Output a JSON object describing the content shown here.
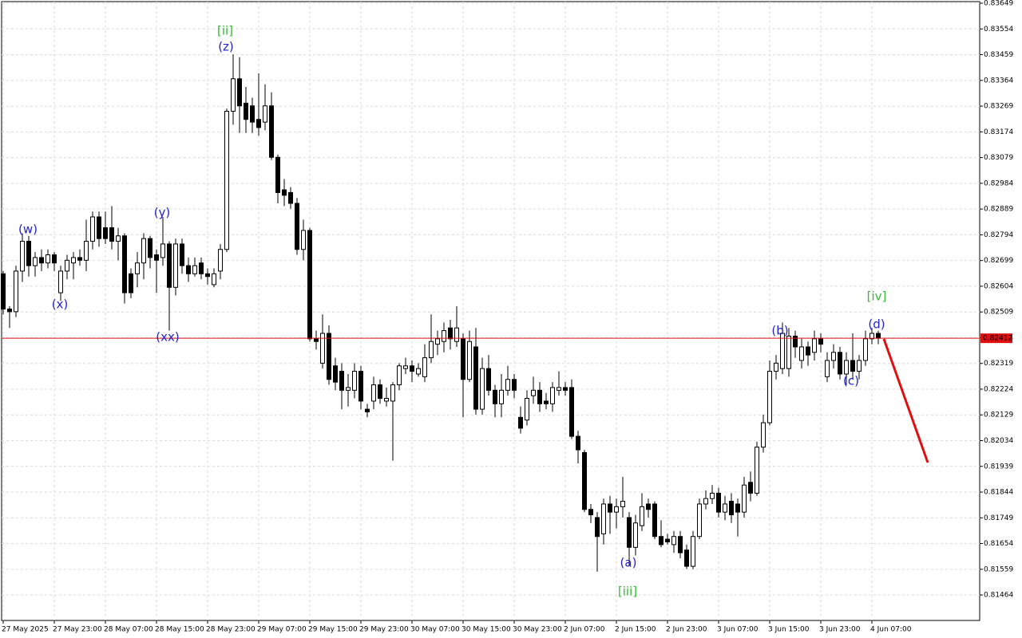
{
  "chart_data": {
    "type": "candlestick",
    "categories": [
      "27 May 2025",
      null,
      null,
      null,
      null,
      null,
      null,
      null,
      "27 May 23:00",
      null,
      null,
      null,
      null,
      null,
      null,
      null,
      "28 May 07:00",
      null,
      null,
      null,
      null,
      null,
      null,
      null,
      "28 May 15:00",
      null,
      null,
      null,
      null,
      null,
      null,
      null,
      "28 May 23:00",
      null,
      null,
      null,
      null,
      null,
      null,
      null,
      "29 May 07:00",
      null,
      null,
      null,
      null,
      null,
      null,
      null,
      "29 May 15:00",
      null,
      null,
      null,
      null,
      null,
      null,
      null,
      "29 May 23:00",
      null,
      null,
      null,
      null,
      null,
      null,
      null,
      "30 May 07:00",
      null,
      null,
      null,
      null,
      null,
      null,
      null,
      "30 May 15:00",
      null,
      null,
      null,
      null,
      null,
      null,
      null,
      "30 May 23:00",
      null,
      null,
      null,
      null,
      null,
      null,
      null,
      "2 Jun 07:00",
      null,
      null,
      null,
      null,
      null,
      null,
      null,
      "2 Jun 15:00",
      null,
      null,
      null,
      null,
      null,
      null,
      null,
      "2 Jun 23:00",
      null,
      null,
      null,
      null,
      null,
      null,
      null,
      "3 Jun 07:00",
      null,
      null,
      null,
      null,
      null,
      null,
      null,
      "3 Jun 15:00",
      null,
      null,
      null,
      null,
      null,
      null,
      null,
      "3 Jun 23:00",
      null,
      null,
      null,
      null,
      null,
      null,
      null,
      "4 Jun 07:00",
      null
    ],
    "open": [
      0.8265,
      0.8252,
      0.8251,
      0.8266,
      0.8277,
      0.8268,
      0.8271,
      0.8269,
      0.8272,
      0.8258,
      0.8266,
      0.8269,
      0.8271,
      0.827,
      0.8277,
      0.8286,
      0.8282,
      0.8282,
      0.8277,
      0.8279,
      0.8265,
      0.8265,
      0.8269,
      0.8278,
      0.8272,
      0.8271,
      0.8276,
      0.826,
      0.8276,
      0.8268,
      0.8265,
      0.8269,
      0.8265,
      0.8261,
      0.8266,
      0.8274,
      0.8325,
      0.8337,
      0.8328,
      0.8327,
      0.8322,
      0.8321,
      0.8327,
      0.8308,
      0.8296,
      0.8295,
      0.8291,
      0.8274,
      0.8281,
      0.8241,
      0.8232,
      0.8243,
      0.8231,
      0.8229,
      0.8222,
      0.8222,
      0.8229,
      0.8215,
      0.8218,
      0.8224,
      0.8218,
      0.8218,
      0.8224,
      0.823,
      0.8231,
      0.8228,
      0.8227,
      0.8234,
      0.8239,
      0.824,
      0.8245,
      0.824,
      0.8241,
      0.8226,
      0.8238,
      0.8215,
      0.823,
      0.8222,
      0.8217,
      0.8222,
      0.8226,
      0.8212,
      0.8211,
      0.822,
      0.8222,
      0.8218,
      0.8217,
      0.8222,
      0.8223,
      0.8223,
      0.8205,
      0.8199,
      0.8178,
      0.8175,
      0.8169,
      0.818,
      0.8177,
      0.8179,
      0.8175,
      0.8164,
      0.8172,
      0.818,
      0.818,
      0.8168,
      0.8167,
      0.8165,
      0.8168,
      0.8163,
      0.8157,
      0.8168,
      0.818,
      0.8182,
      0.8184,
      0.8177,
      0.8181,
      0.818,
      0.8177,
      0.8188,
      0.8184,
      0.8201,
      0.821,
      0.8229,
      0.823,
      0.823,
      0.8242,
      0.8233,
      0.8238,
      0.8236,
      0.8241,
      0.8227,
      0.8233,
      0.8236,
      0.8228,
      0.8233,
      0.8229,
      0.8233,
      0.8241,
      0.8243
    ],
    "high": [
      0.8266,
      0.8253,
      0.8268,
      0.828,
      0.8279,
      0.8273,
      0.8274,
      0.8274,
      0.8273,
      0.8268,
      0.8272,
      0.8273,
      0.8274,
      0.8285,
      0.8288,
      0.8288,
      0.8288,
      0.829,
      0.8282,
      0.828,
      0.8267,
      0.8273,
      0.828,
      0.8279,
      0.8274,
      0.8286,
      0.8277,
      0.8278,
      0.8278,
      0.8271,
      0.8271,
      0.8271,
      0.8267,
      0.8267,
      0.8276,
      0.8326,
      0.8346,
      0.8345,
      0.8334,
      0.833,
      0.8339,
      0.8335,
      0.8332,
      0.8309,
      0.83,
      0.8297,
      0.8293,
      0.8285,
      0.8282,
      0.8244,
      0.825,
      0.8246,
      0.8234,
      0.8232,
      0.8228,
      0.8232,
      0.8231,
      0.8217,
      0.8227,
      0.8226,
      0.8223,
      0.8225,
      0.8232,
      0.8234,
      0.8233,
      0.8232,
      0.8239,
      0.825,
      0.8244,
      0.8247,
      0.8248,
      0.8253,
      0.8243,
      0.8244,
      0.8245,
      0.8234,
      0.8235,
      0.8224,
      0.8228,
      0.8231,
      0.8228,
      0.8216,
      0.8222,
      0.8227,
      0.8225,
      0.8221,
      0.8225,
      0.8229,
      0.8225,
      0.8226,
      0.8207,
      0.82,
      0.818,
      0.8177,
      0.8182,
      0.8183,
      0.8182,
      0.819,
      0.8177,
      0.8176,
      0.8184,
      0.8182,
      0.8181,
      0.8174,
      0.8169,
      0.817,
      0.817,
      0.8165,
      0.817,
      0.8182,
      0.8185,
      0.8187,
      0.8186,
      0.8183,
      0.8184,
      0.8182,
      0.819,
      0.8192,
      0.8203,
      0.8213,
      0.8233,
      0.8235,
      0.8247,
      0.8245,
      0.8244,
      0.8241,
      0.824,
      0.8244,
      0.8243,
      0.8236,
      0.8239,
      0.8238,
      0.8236,
      0.8243,
      0.8235,
      0.8244,
      0.8245,
      0.8244
    ],
    "low": [
      0.825,
      0.8245,
      0.8249,
      0.8262,
      0.8264,
      0.8264,
      0.8266,
      0.8267,
      0.8266,
      0.8255,
      0.8263,
      0.8263,
      0.8268,
      0.8266,
      0.8274,
      0.8275,
      0.8276,
      0.8274,
      0.827,
      0.8254,
      0.8256,
      0.826,
      0.8263,
      0.8267,
      0.8258,
      0.8268,
      0.8244,
      0.8257,
      0.8265,
      0.8262,
      0.8264,
      0.8263,
      0.8261,
      0.826,
      0.8263,
      0.8273,
      0.832,
      0.8317,
      0.8317,
      0.8317,
      0.8316,
      0.8318,
      0.8307,
      0.8291,
      0.829,
      0.8289,
      0.8272,
      0.827,
      0.824,
      0.8237,
      0.823,
      0.8224,
      0.8222,
      0.8215,
      0.8216,
      0.8219,
      0.8215,
      0.8212,
      0.8215,
      0.8217,
      0.8216,
      0.8196,
      0.8222,
      0.8228,
      0.8225,
      0.8227,
      0.8225,
      0.8232,
      0.8235,
      0.8236,
      0.8237,
      0.8238,
      0.8212,
      0.8225,
      0.8213,
      0.8213,
      0.822,
      0.8212,
      0.8212,
      0.822,
      0.8219,
      0.8206,
      0.8209,
      0.8217,
      0.8214,
      0.8215,
      0.8214,
      0.822,
      0.822,
      0.8204,
      0.8195,
      0.8177,
      0.8173,
      0.8155,
      0.8165,
      0.8169,
      0.8171,
      0.8175,
      0.8157,
      0.8161,
      0.817,
      0.8175,
      0.8167,
      0.8164,
      0.8165,
      0.8162,
      0.816,
      0.8156,
      0.8156,
      0.8167,
      0.8178,
      0.818,
      0.8175,
      0.8174,
      0.8173,
      0.8168,
      0.8175,
      0.8181,
      0.8183,
      0.8199,
      0.8209,
      0.8226,
      0.8228,
      0.8227,
      0.8234,
      0.823,
      0.8231,
      0.8233,
      0.8236,
      0.8225,
      0.823,
      0.8226,
      0.8224,
      0.8226,
      0.8226,
      0.8231,
      0.8239,
      0.8239
    ],
    "close": [
      0.8252,
      0.8251,
      0.8266,
      0.8277,
      0.8268,
      0.8271,
      0.8269,
      0.8272,
      0.8269,
      0.8266,
      0.827,
      0.8271,
      0.827,
      0.8277,
      0.8286,
      0.8278,
      0.8278,
      0.8277,
      0.8279,
      0.8258,
      0.8258,
      0.8269,
      0.8278,
      0.8271,
      0.827,
      0.8276,
      0.826,
      0.8276,
      0.8268,
      0.8265,
      0.8268,
      0.8265,
      0.8264,
      0.8265,
      0.8274,
      0.8325,
      0.8337,
      0.8327,
      0.8322,
      0.8321,
      0.8319,
      0.8327,
      0.8308,
      0.8295,
      0.8294,
      0.8291,
      0.8274,
      0.8281,
      0.8241,
      0.824,
      0.8243,
      0.8226,
      0.8225,
      0.8222,
      0.8223,
      0.8229,
      0.8218,
      0.8214,
      0.8224,
      0.8219,
      0.8219,
      0.8224,
      0.8231,
      0.8231,
      0.8229,
      0.823,
      0.8234,
      0.824,
      0.8241,
      0.8244,
      0.8241,
      0.8245,
      0.8226,
      0.824,
      0.8215,
      0.823,
      0.8222,
      0.8217,
      0.8222,
      0.8226,
      0.8222,
      0.8208,
      0.8219,
      0.8222,
      0.8217,
      0.8217,
      0.8223,
      0.8223,
      0.8222,
      0.8205,
      0.82,
      0.8178,
      0.8176,
      0.8168,
      0.818,
      0.8177,
      0.8179,
      0.8181,
      0.8164,
      0.8173,
      0.8179,
      0.8178,
      0.8168,
      0.8165,
      0.8166,
      0.8168,
      0.8162,
      0.8157,
      0.8168,
      0.818,
      0.8182,
      0.8184,
      0.8177,
      0.818,
      0.8176,
      0.8177,
      0.8187,
      0.8184,
      0.8201,
      0.821,
      0.8229,
      0.8232,
      0.8243,
      0.8242,
      0.8238,
      0.8238,
      0.8235,
      0.8241,
      0.8239,
      0.8233,
      0.8236,
      0.8228,
      0.8233,
      0.8229,
      0.8233,
      0.8241,
      0.8243,
      0.82412
    ],
    "up_color": "#ffffff",
    "down_color": "#000000",
    "ylim": [
      0.8137,
      0.83655
    ],
    "yticks": [
      0.81464,
      0.81559,
      0.81654,
      0.81749,
      0.81844,
      0.81939,
      0.82034,
      0.82129,
      0.82224,
      0.82319,
      0.82414,
      0.82509,
      0.82604,
      0.82699,
      0.82794,
      0.82889,
      0.82984,
      0.83079,
      0.83174,
      0.83269,
      0.83364,
      0.83459,
      0.83554,
      0.83649
    ],
    "grid": true,
    "current_price": 0.82412,
    "current_price_color": "#e01010",
    "annotations": [
      {
        "text": "(w)",
        "color": "#2222cc"
      },
      {
        "text": "(x)",
        "color": "#2222cc"
      },
      {
        "text": "(y)",
        "color": "#2222cc"
      },
      {
        "text": "(xx)",
        "color": "#2222cc"
      },
      {
        "text": "[ii]",
        "color": "#33bb33"
      },
      {
        "text": "(z)",
        "color": "#2222cc"
      },
      {
        "text": "(a)",
        "color": "#2222cc"
      },
      {
        "text": "[iii]",
        "color": "#33bb33"
      },
      {
        "text": "(b)",
        "color": "#2222cc"
      },
      {
        "text": "(c)",
        "color": "#2222cc"
      },
      {
        "text": "[iv]",
        "color": "#33bb33"
      },
      {
        "text": "(d)",
        "color": "#2222cc"
      }
    ]
  }
}
